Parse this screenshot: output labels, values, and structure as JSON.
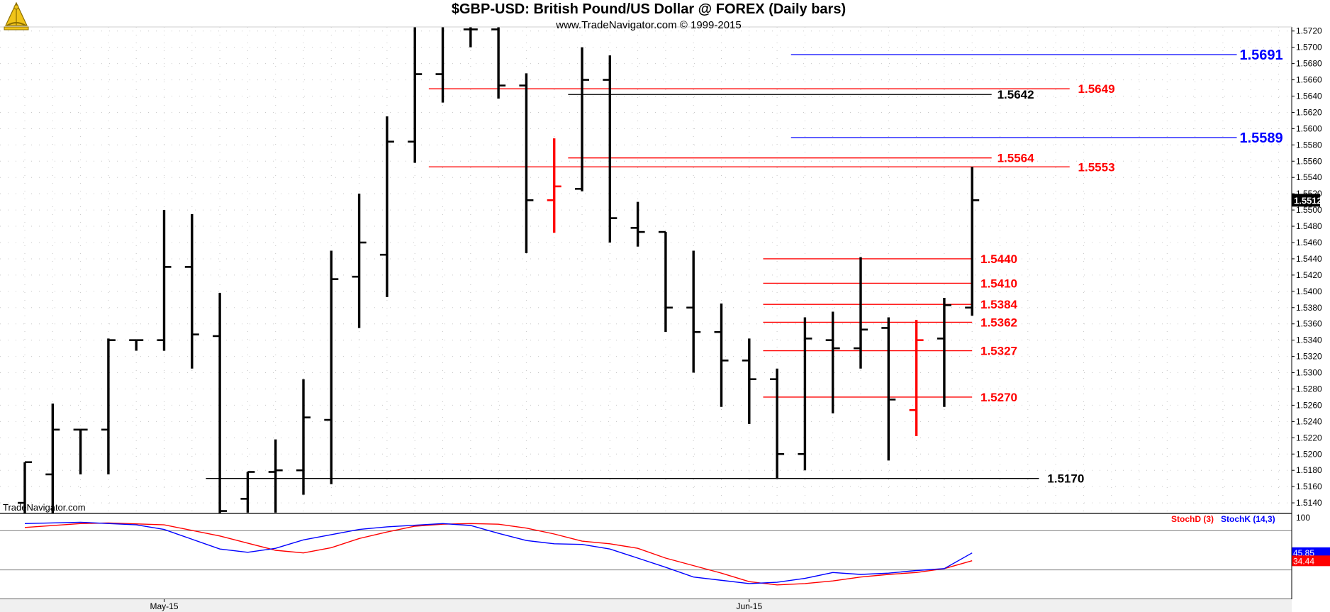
{
  "header": {
    "title": "$GBP-USD:  British Pound/US Dollar @ FOREX  (Daily bars)",
    "subtitle": "www.TradeNavigator.com © 1999-2015",
    "watermark": "TradeNavigator.com",
    "logo_icon": "sextant-logo-icon"
  },
  "chart_data": {
    "type": "bar",
    "price_panel": {
      "y_ticks": [
        "1.5720",
        "1.5700",
        "1.5680",
        "1.5660",
        "1.5640",
        "1.5620",
        "1.5600",
        "1.5580",
        "1.5560",
        "1.5540",
        "1.5520",
        "1.5500",
        "1.5480",
        "1.5460",
        "1.5440",
        "1.5420",
        "1.5400",
        "1.5380",
        "1.5360",
        "1.5340",
        "1.5320",
        "1.5300",
        "1.5280",
        "1.5260",
        "1.5240",
        "1.5220",
        "1.5200",
        "1.5180",
        "1.5160",
        "1.5140"
      ],
      "ylim": [
        1.5127,
        1.5725
      ],
      "last_price": "1.5512",
      "grid": true,
      "bars": [
        {
          "o": 1.514,
          "h": 1.519,
          "l": 1.512,
          "c": 1.519
        },
        {
          "o": 1.5175,
          "h": 1.5262,
          "l": 1.5125,
          "c": 1.523
        },
        {
          "o": 1.523,
          "h": 1.523,
          "l": 1.5175,
          "c": 1.523
        },
        {
          "o": 1.523,
          "h": 1.5342,
          "l": 1.5175,
          "c": 1.534
        },
        {
          "o": 1.534,
          "h": 1.534,
          "l": 1.5327,
          "c": 1.534
        },
        {
          "o": 1.534,
          "h": 1.55,
          "l": 1.5327,
          "c": 1.543
        },
        {
          "o": 1.543,
          "h": 1.5495,
          "l": 1.5305,
          "c": 1.5347
        },
        {
          "o": 1.5345,
          "h": 1.5398,
          "l": 1.5125,
          "c": 1.513
        },
        {
          "o": 1.5145,
          "h": 1.5178,
          "l": 1.5128,
          "c": 1.5178
        },
        {
          "o": 1.5178,
          "h": 1.5218,
          "l": 1.5128,
          "c": 1.518
        },
        {
          "o": 1.518,
          "h": 1.5292,
          "l": 1.515,
          "c": 1.5245
        },
        {
          "o": 1.5242,
          "h": 1.545,
          "l": 1.5163,
          "c": 1.5415
        },
        {
          "o": 1.5418,
          "h": 1.552,
          "l": 1.5355,
          "c": 1.546
        },
        {
          "o": 1.5445,
          "h": 1.5615,
          "l": 1.5393,
          "c": 1.5584
        },
        {
          "o": 1.5584,
          "h": 1.5735,
          "l": 1.5558,
          "c": 1.5667
        },
        {
          "o": 1.5667,
          "h": 1.5742,
          "l": 1.5632,
          "c": 1.5735
        },
        {
          "o": 1.5722,
          "h": 1.574,
          "l": 1.57,
          "c": 1.5722
        },
        {
          "o": 1.5722,
          "h": 1.5742,
          "l": 1.5637,
          "c": 1.5653
        },
        {
          "o": 1.5653,
          "h": 1.5668,
          "l": 1.5447,
          "c": 1.5512
        },
        {
          "o": 1.5512,
          "h": 1.5588,
          "l": 1.5472,
          "c": 1.5529,
          "red": true
        },
        {
          "o": 1.5526,
          "h": 1.57,
          "l": 1.5523,
          "c": 1.566
        },
        {
          "o": 1.566,
          "h": 1.569,
          "l": 1.546,
          "c": 1.549
        },
        {
          "o": 1.5478,
          "h": 1.551,
          "l": 1.5455,
          "c": 1.5473
        },
        {
          "o": 1.5473,
          "h": 1.5473,
          "l": 1.535,
          "c": 1.538
        },
        {
          "o": 1.538,
          "h": 1.545,
          "l": 1.53,
          "c": 1.535
        },
        {
          "o": 1.535,
          "h": 1.5385,
          "l": 1.5258,
          "c": 1.5315
        },
        {
          "o": 1.5315,
          "h": 1.5342,
          "l": 1.5237,
          "c": 1.5292
        },
        {
          "o": 1.5292,
          "h": 1.5305,
          "l": 1.517,
          "c": 1.52
        },
        {
          "o": 1.52,
          "h": 1.5368,
          "l": 1.518,
          "c": 1.5342
        },
        {
          "o": 1.534,
          "h": 1.5375,
          "l": 1.525,
          "c": 1.533
        },
        {
          "o": 1.533,
          "h": 1.5442,
          "l": 1.5305,
          "c": 1.5353
        },
        {
          "o": 1.5355,
          "h": 1.5368,
          "l": 1.5192,
          "c": 1.5267
        },
        {
          "o": 1.5254,
          "h": 1.5365,
          "l": 1.5222,
          "c": 1.534,
          "red": true
        },
        {
          "o": 1.5342,
          "h": 1.5392,
          "l": 1.5258,
          "c": 1.5383
        },
        {
          "o": 1.538,
          "h": 1.5553,
          "l": 1.537,
          "c": 1.5512
        }
      ],
      "levels": [
        {
          "label": "1.5691",
          "value": 1.5691,
          "color": "#0000ff",
          "from": 27.5,
          "to": 43.5,
          "label_at": 43.6,
          "big": true
        },
        {
          "label": "1.5649",
          "value": 1.5649,
          "color": "#ff0000",
          "from": 14.5,
          "to": 37.5,
          "label_at": 37.8
        },
        {
          "label": "1.5642",
          "value": 1.5642,
          "color": "#000000",
          "from": 19.5,
          "to": 34.7,
          "label_at": 34.9
        },
        {
          "label": "1.5589",
          "value": 1.5589,
          "color": "#0000ff",
          "from": 27.5,
          "to": 43.5,
          "label_at": 43.6,
          "big": true
        },
        {
          "label": "1.5564",
          "value": 1.5564,
          "color": "#ff0000",
          "from": 19.5,
          "to": 34.7,
          "label_at": 34.9
        },
        {
          "label": "1.5553",
          "value": 1.5553,
          "color": "#ff0000",
          "from": 14.5,
          "to": 37.5,
          "label_at": 37.8
        },
        {
          "label": "1.5440",
          "value": 1.544,
          "color": "#ff0000",
          "from": 26.5,
          "to": 34.0,
          "label_at": 34.3
        },
        {
          "label": "1.5410",
          "value": 1.541,
          "color": "#ff0000",
          "from": 26.5,
          "to": 34.0,
          "label_at": 34.3
        },
        {
          "label": "1.5384",
          "value": 1.5384,
          "color": "#ff0000",
          "from": 26.5,
          "to": 34.0,
          "label_at": 34.3
        },
        {
          "label": "1.5362",
          "value": 1.5362,
          "color": "#ff0000",
          "from": 26.5,
          "to": 34.0,
          "label_at": 34.3
        },
        {
          "label": "1.5327",
          "value": 1.5327,
          "color": "#ff0000",
          "from": 26.5,
          "to": 34.0,
          "label_at": 34.3
        },
        {
          "label": "1.5270",
          "value": 1.527,
          "color": "#ff0000",
          "from": 26.5,
          "to": 34.0,
          "label_at": 34.3
        },
        {
          "label": "1.5170",
          "value": 1.517,
          "color": "#000000",
          "from": 6.5,
          "to": 36.4,
          "label_at": 36.7
        }
      ]
    },
    "stoch_panel": {
      "legend": [
        {
          "name": "StochD (3)",
          "color": "#ff0000"
        },
        {
          "name": "StochK (14,3)",
          "color": "#0000ff"
        }
      ],
      "ylim": [
        0,
        100
      ],
      "top_label": "100",
      "reference_lines": [
        80,
        20
      ],
      "stoch_d_value": "34.44",
      "stoch_k_value": "45.85",
      "stoch_d": [
        [
          0,
          85
        ],
        [
          2,
          91
        ],
        [
          3,
          92
        ],
        [
          5,
          89
        ],
        [
          7,
          72
        ],
        [
          8,
          61
        ],
        [
          9,
          50
        ],
        [
          10,
          46
        ],
        [
          11,
          54
        ],
        [
          12,
          68
        ],
        [
          13,
          78
        ],
        [
          14,
          87
        ],
        [
          15,
          90
        ],
        [
          16,
          91
        ],
        [
          17,
          90
        ],
        [
          18,
          84
        ],
        [
          19,
          75
        ],
        [
          20,
          64
        ],
        [
          21,
          60
        ],
        [
          22,
          53
        ],
        [
          23,
          38
        ],
        [
          25,
          15
        ],
        [
          26,
          2
        ],
        [
          27,
          -3
        ],
        [
          28,
          -1
        ],
        [
          29,
          3
        ],
        [
          30,
          9
        ],
        [
          31,
          13
        ],
        [
          32,
          16
        ],
        [
          33,
          22
        ],
        [
          34,
          34
        ]
      ],
      "stoch_k": [
        [
          0,
          91
        ],
        [
          2,
          93
        ],
        [
          4,
          89
        ],
        [
          5,
          82
        ],
        [
          6,
          67
        ],
        [
          7,
          52
        ],
        [
          8,
          47
        ],
        [
          9,
          53
        ],
        [
          10,
          66
        ],
        [
          12,
          82
        ],
        [
          13,
          86
        ],
        [
          15,
          91
        ],
        [
          16,
          88
        ],
        [
          17,
          76
        ],
        [
          18,
          65
        ],
        [
          19,
          60
        ],
        [
          20,
          59
        ],
        [
          21,
          52
        ],
        [
          22,
          38
        ],
        [
          23,
          24
        ],
        [
          24,
          9
        ],
        [
          26,
          -1
        ],
        [
          27,
          1
        ],
        [
          28,
          7
        ],
        [
          29,
          16
        ],
        [
          30,
          13
        ],
        [
          31,
          15
        ],
        [
          32,
          19
        ],
        [
          33,
          22
        ],
        [
          34,
          46
        ]
      ]
    },
    "x_labels": [
      {
        "text": "May-15",
        "bar": 5
      },
      {
        "text": "Jun-15",
        "bar": 26
      }
    ]
  }
}
